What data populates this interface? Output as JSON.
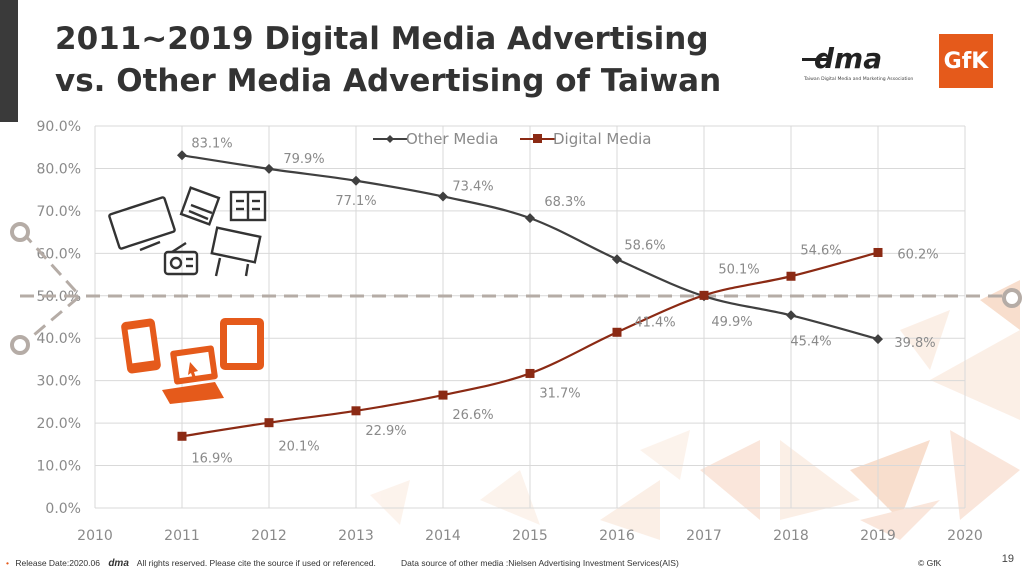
{
  "title": {
    "line1": "2011~2019 Digital Media Advertising",
    "line2": "vs. Other Media Advertising of Taiwan"
  },
  "logos": {
    "dma_text": "dma",
    "dma_subtitle": "Taiwan Digital Media and Marketing Association",
    "gfk_text": "GfK"
  },
  "footer": {
    "release": "Release Date:2020.06",
    "dma_mark": "dma",
    "rights": "All rights reserved. Please cite the source if used or referenced.",
    "source": "Data source of other media :Nielsen Advertising Investment Services(AIS)",
    "copyright": "© GfK"
  },
  "slide_number": "19",
  "colors": {
    "other_media": "#404040",
    "digital_media": "#8b2a14",
    "accent": "#e55a1b",
    "grid": "#d9d9d9"
  },
  "icons": [
    "tv-icon",
    "newspaper-icon",
    "magazine-icon",
    "radio-icon",
    "billboard-icon",
    "phone-icon",
    "tablet-icon",
    "laptop-icon"
  ],
  "chart_data": {
    "type": "line",
    "xlim": [
      2010,
      2020
    ],
    "x_ticks": [
      "2010",
      "2011",
      "2012",
      "2013",
      "2014",
      "2015",
      "2016",
      "2017",
      "2018",
      "2019",
      "2020"
    ],
    "ylim": [
      0,
      90
    ],
    "y_ticks": [
      "0.0%",
      "10.0%",
      "20.0%",
      "30.0%",
      "40.0%",
      "50.0%",
      "60.0%",
      "70.0%",
      "80.0%",
      "90.0%"
    ],
    "x": [
      2011,
      2012,
      2013,
      2014,
      2015,
      2016,
      2017,
      2018,
      2019
    ],
    "legend_position": "top",
    "grid": true,
    "reference_line": 50,
    "series": [
      {
        "name": "Other Media",
        "values": [
          83.1,
          79.9,
          77.1,
          73.4,
          68.3,
          58.6,
          49.9,
          45.4,
          39.8
        ],
        "labels": [
          "83.1%",
          "79.9%",
          "77.1%",
          "73.4%",
          "68.3%",
          "58.6%",
          "49.9%",
          "45.4%",
          "39.8%"
        ]
      },
      {
        "name": "Digital Media",
        "values": [
          16.9,
          20.1,
          22.9,
          26.6,
          31.7,
          41.4,
          50.1,
          54.6,
          60.2
        ],
        "labels": [
          "16.9%",
          "20.1%",
          "22.9%",
          "26.6%",
          "31.7%",
          "41.4%",
          "50.1%",
          "54.6%",
          "60.2%"
        ]
      }
    ]
  }
}
